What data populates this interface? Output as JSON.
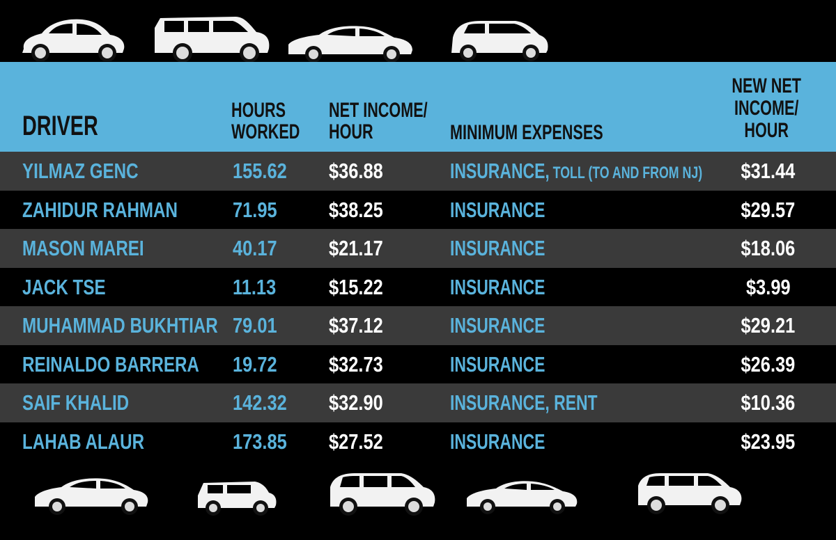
{
  "header": {
    "driver": "DRIVER",
    "hours_line1": "HOURS",
    "hours_line2": "WORKED",
    "net_line1": "NET INCOME/",
    "net_line2": "HOUR",
    "min_expenses": "MINIMUM EXPENSES",
    "new_line1": "NEW NET",
    "new_line2": "INCOME/",
    "new_line3": "HOUR"
  },
  "rows": [
    {
      "driver": "YILMAZ GENC",
      "hours": "155.62",
      "net": "$36.88",
      "expenses": "INSURANCE,",
      "expenses_extra": " TOLL (TO AND FROM NJ)",
      "new_net": "$31.44"
    },
    {
      "driver": "ZAHIDUR RAHMAN",
      "hours": "71.95",
      "net": "$38.25",
      "expenses": "INSURANCE",
      "expenses_extra": "",
      "new_net": "$29.57"
    },
    {
      "driver": "MASON MAREI",
      "hours": "40.17",
      "net": "$21.17",
      "expenses": "INSURANCE",
      "expenses_extra": "",
      "new_net": "$18.06"
    },
    {
      "driver": "JACK TSE",
      "hours": "11.13",
      "net": "$15.22",
      "expenses": "INSURANCE",
      "expenses_extra": "",
      "new_net": "$3.99"
    },
    {
      "driver": "MUHAMMAD BUKHTIAR",
      "hours": "79.01",
      "net": "$37.12",
      "expenses": "INSURANCE",
      "expenses_extra": "",
      "new_net": "$29.21"
    },
    {
      "driver": "REINALDO BARRERA",
      "hours": "19.72",
      "net": "$32.73",
      "expenses": "INSURANCE",
      "expenses_extra": "",
      "new_net": "$26.39"
    },
    {
      "driver": "SAIF KHALID",
      "hours": "142.32",
      "net": "$32.90",
      "expenses": "INSURANCE, RENT",
      "expenses_extra": "",
      "new_net": "$10.36"
    },
    {
      "driver": "LAHAB ALAUR",
      "hours": "173.85",
      "net": "$27.52",
      "expenses": "INSURANCE",
      "expenses_extra": "",
      "new_net": "$23.95"
    }
  ],
  "icons": {
    "top": [
      "beetle-car-icon",
      "suv-car-icon",
      "sedan-car-icon",
      "hatchback-car-icon"
    ],
    "bottom": [
      "sedan-car-icon",
      "mini-car-icon",
      "crossover-car-icon",
      "coupe-car-icon",
      "suv-car-icon"
    ]
  },
  "colors": {
    "accent_blue": "#5ab3dc",
    "background": "#000000",
    "alt_row": "#3a3a3a",
    "white": "#ffffff"
  }
}
